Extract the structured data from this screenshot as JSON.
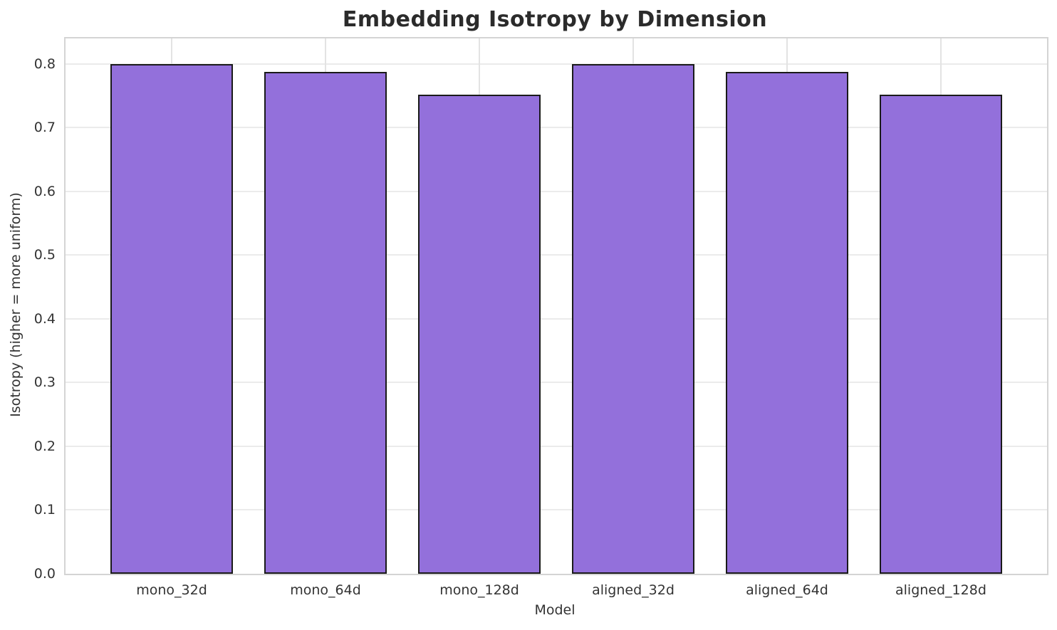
{
  "chart_data": {
    "type": "bar",
    "title": "Embedding Isotropy by Dimension",
    "xlabel": "Model",
    "ylabel": "Isotropy (higher = more uniform)",
    "categories": [
      "mono_32d",
      "mono_64d",
      "mono_128d",
      "aligned_32d",
      "aligned_64d",
      "aligned_128d"
    ],
    "values": [
      0.8,
      0.788,
      0.752,
      0.8,
      0.788,
      0.752
    ],
    "ylim": [
      0.0,
      0.84
    ],
    "xlim": [
      -0.69,
      5.69
    ],
    "yticks": [
      "0.0",
      "0.1",
      "0.2",
      "0.3",
      "0.4",
      "0.5",
      "0.6",
      "0.7",
      "0.8"
    ],
    "bar_width_units": 0.8,
    "grid": true,
    "legend": null,
    "colors": {
      "bar_fill": "#9370db",
      "bar_edge": "#1a1a1a",
      "gridline": "#ebebeb",
      "spine": "#d4d4d4",
      "tick_text": "#333333",
      "title_text": "#2b2b2b",
      "background": "#ffffff"
    }
  }
}
